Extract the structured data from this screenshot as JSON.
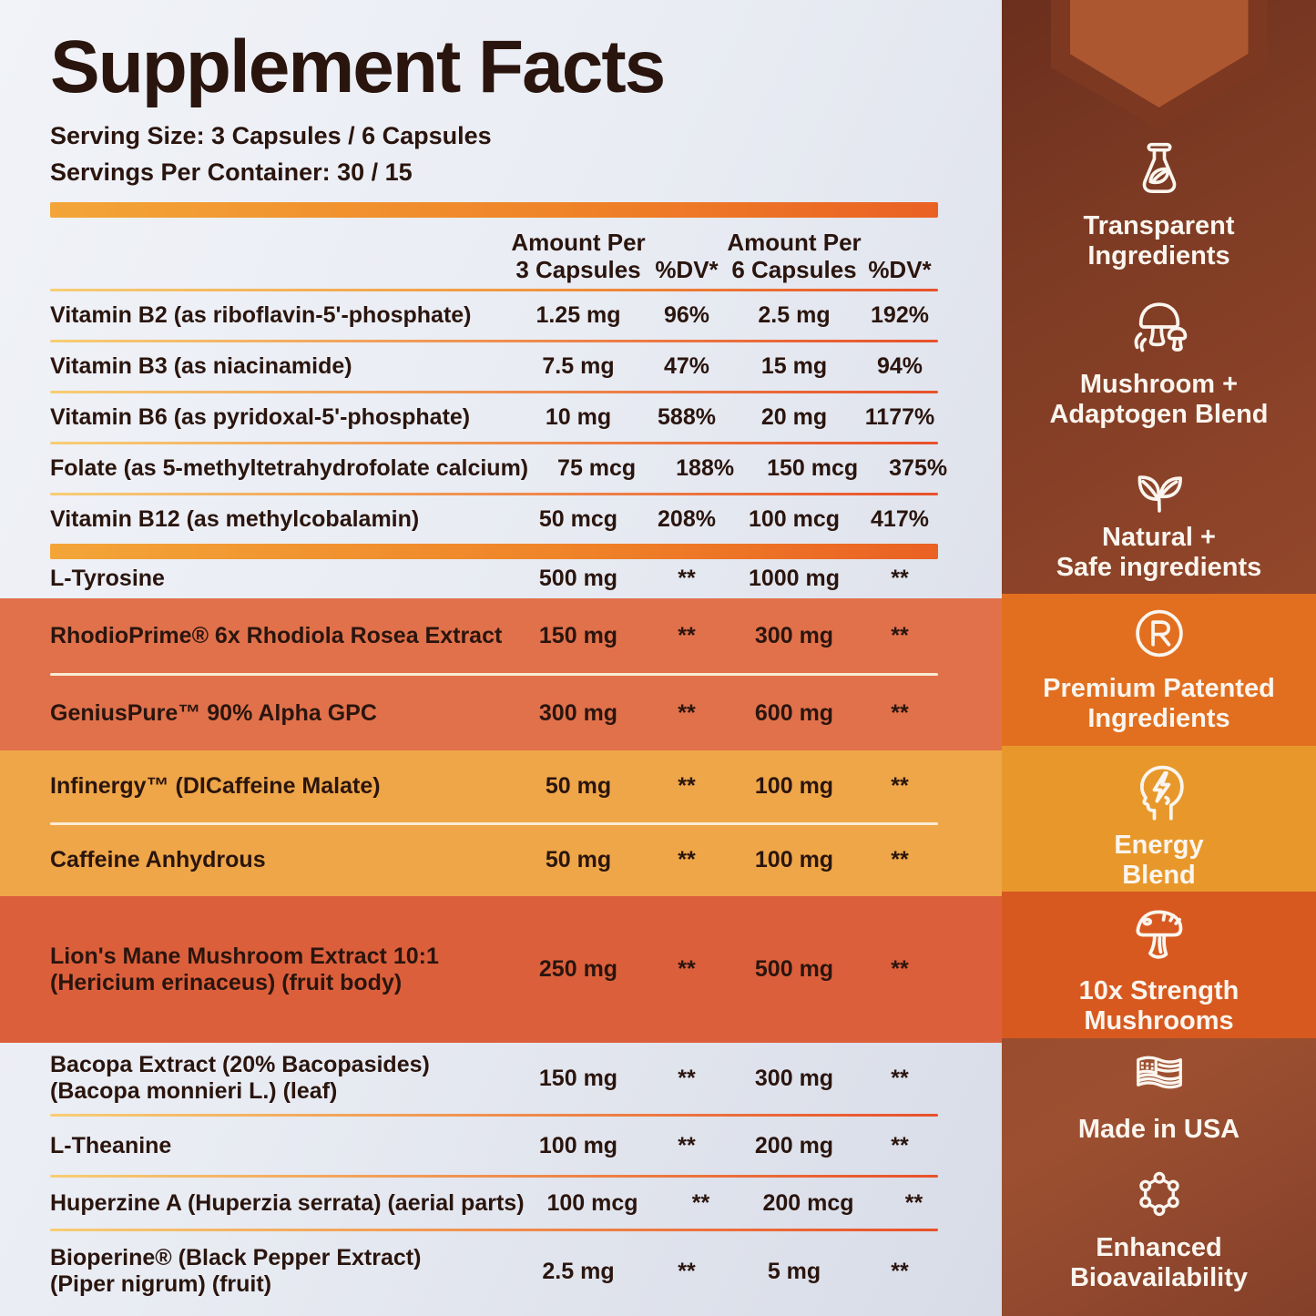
{
  "title": "Supplement Facts",
  "serving": {
    "size": "Serving Size: 3 Capsules / 6 Capsules",
    "per_container": "Servings Per Container: 30 / 15"
  },
  "table": {
    "headers": {
      "amount_3": "Amount Per\n3 Capsules",
      "dv_3": "%DV*",
      "amount_6": "Amount Per\n6 Capsules",
      "dv_6": "%DV*"
    },
    "sections": [
      {
        "style": "light",
        "rows": [
          {
            "name": "Vitamin B2 (as riboflavin-5'-phosphate)",
            "amount_3": "1.25 mg",
            "dv_3": "96%",
            "amount_6": "2.5 mg",
            "dv_6": "192%"
          },
          {
            "name": "Vitamin B3 (as niacinamide)",
            "amount_3": "7.5 mg",
            "dv_3": "47%",
            "amount_6": "15 mg",
            "dv_6": "94%"
          },
          {
            "name": "Vitamin B6 (as pyridoxal-5'-phosphate)",
            "amount_3": "10 mg",
            "dv_3": "588%",
            "amount_6": "20 mg",
            "dv_6": "1177%"
          },
          {
            "name": "Folate (as 5-methyltetrahydrofolate calcium)",
            "amount_3": "75 mcg",
            "dv_3": "188%",
            "amount_6": "150 mcg",
            "dv_6": "375%"
          },
          {
            "name": "Vitamin B12 (as methylcobalamin)",
            "amount_3": "50 mcg",
            "dv_3": "208%",
            "amount_6": "100 mcg",
            "dv_6": "417%"
          }
        ]
      },
      {
        "divider": true
      },
      {
        "style": "light",
        "rows": [
          {
            "name": "L-Tyrosine",
            "amount_3": "500 mg",
            "dv_3": "**",
            "amount_6": "1000 mg",
            "dv_6": "**"
          }
        ]
      },
      {
        "style": "orange",
        "rows": [
          {
            "name": "RhodioPrime® 6x Rhodiola Rosea Extract",
            "amount_3": "150 mg",
            "dv_3": "**",
            "amount_6": "300 mg",
            "dv_6": "**"
          },
          {
            "name": "GeniusPure™ 90% Alpha GPC",
            "amount_3": "300 mg",
            "dv_3": "**",
            "amount_6": "600 mg",
            "dv_6": "**"
          }
        ]
      },
      {
        "style": "amber",
        "rows": [
          {
            "name": "Infinergy™ (DICaffeine Malate)",
            "amount_3": "50 mg",
            "dv_3": "**",
            "amount_6": "100 mg",
            "dv_6": "**"
          },
          {
            "name": "Caffeine Anhydrous",
            "amount_3": "50 mg",
            "dv_3": "**",
            "amount_6": "100 mg",
            "dv_6": "**"
          }
        ]
      },
      {
        "style": "deep",
        "rows": [
          {
            "name": "Lion's Mane Mushroom Extract 10:1\n(Hericium erinaceus) (fruit body)",
            "amount_3": "250 mg",
            "dv_3": "**",
            "amount_6": "500 mg",
            "dv_6": "**"
          }
        ]
      },
      {
        "style": "light",
        "rows": [
          {
            "name": "Bacopa Extract (20% Bacopasides)\n(Bacopa monnieri L.) (leaf)",
            "amount_3": "150 mg",
            "dv_3": "**",
            "amount_6": "300 mg",
            "dv_6": "**"
          },
          {
            "name": "L-Theanine",
            "amount_3": "100 mg",
            "dv_3": "**",
            "amount_6": "200 mg",
            "dv_6": "**"
          },
          {
            "name": "Huperzine A (Huperzia serrata) (aerial parts)",
            "amount_3": "100 mcg",
            "dv_3": "**",
            "amount_6": "200 mcg",
            "dv_6": "**"
          },
          {
            "name": "Bioperine® (Black Pepper Extract)\n(Piper nigrum) (fruit)",
            "amount_3": "2.5 mg",
            "dv_3": "**",
            "amount_6": "5 mg",
            "dv_6": "**"
          }
        ]
      }
    ]
  },
  "sidebar": {
    "features": [
      {
        "id": "transparent-ingredients",
        "icon": "flask-leaf",
        "label": [
          "Transparent",
          "Ingredients"
        ]
      },
      {
        "id": "mushroom-adaptogen-blend",
        "icon": "mushrooms",
        "label": [
          "Mushroom +",
          "Adaptogen Blend"
        ]
      },
      {
        "id": "natural-safe-ingredients",
        "icon": "leaves",
        "label": [
          "Natural +",
          "Safe ingredients"
        ]
      },
      {
        "id": "premium-patented-ingredients",
        "icon": "registered",
        "label": [
          "Premium Patented",
          "Ingredients"
        ]
      },
      {
        "id": "energy-blend",
        "icon": "head-bolt",
        "label": [
          "Energy",
          "Blend"
        ]
      },
      {
        "id": "10x-strength-mushrooms",
        "icon": "mushroom",
        "label": [
          "10x Strength",
          "Mushrooms"
        ]
      },
      {
        "id": "made-in-usa",
        "icon": "usa-flag",
        "label": [
          "Made in USA"
        ]
      },
      {
        "id": "enhanced-bioavailability",
        "icon": "molecule",
        "label": [
          "Enhanced",
          "Bioavailability"
        ]
      }
    ]
  },
  "colors": {
    "page_bg_start": "#F1F3F8",
    "page_bg_end": "#D8DCE7",
    "title_text": "#2A150E",
    "bar_gradient_start": "#F3A538",
    "bar_gradient_end": "#EA6124",
    "rule_gradient_start": "#F7CD74",
    "rule_gradient_end": "#E8512A",
    "band_orange": "#E1714B",
    "band_amber": "#EFA648",
    "band_deep": "#DC5F3B",
    "sidebar_orange": "#E26F20",
    "sidebar_amber": "#E8982B",
    "sidebar_deep": "#D7591F",
    "sidebar_brown_dark": "#6B2F1D",
    "sidebar_brown": "#95482B",
    "ribbon_outer": "#7C3820",
    "ribbon_inner": "#AD5731",
    "sidebar_text": "#FAF5EE"
  }
}
